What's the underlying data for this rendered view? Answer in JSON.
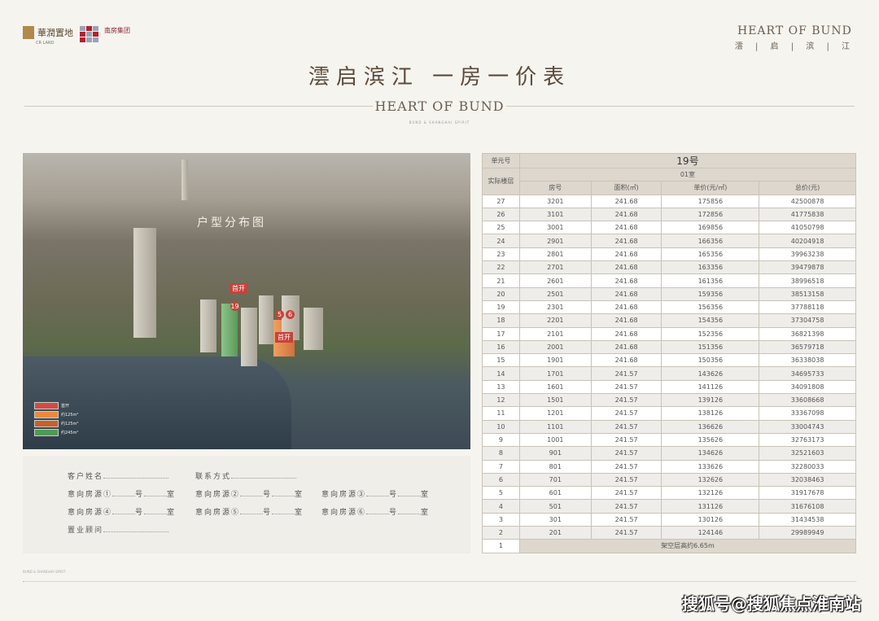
{
  "header": {
    "logo1_cn": "華潤置地",
    "logo1_en": "CR LAND",
    "logo2_cn": "南房集团",
    "logo2_en": "SHANGHAI NANFANG GROUP",
    "brand_en": "HEART OF BUND",
    "brand_cn": "澐 | 启 | 滨 | 江"
  },
  "title": "澐启滨江  一房一价表",
  "center_brand": "HEART OF BUND",
  "center_sub": "BUND & SHANGHAI SPIRIT",
  "photo": {
    "plan_label": "户型分布图",
    "tags": [
      "首开",
      "首开"
    ],
    "numbers": [
      "19",
      "5",
      "6"
    ],
    "legend": [
      {
        "label": "首开",
        "color": "#d24a44"
      },
      {
        "label": "约125m²",
        "color": "#e98a3c"
      },
      {
        "label": "约125m²",
        "color": "#c8602a"
      },
      {
        "label": "约245m²",
        "color": "#4f9a55"
      }
    ]
  },
  "form": {
    "name": "客户姓名",
    "contact": "联系方式",
    "sources": [
      "意向房源①",
      "意向房源②",
      "意向房源③",
      "意向房源④",
      "意向房源⑤",
      "意向房源⑥"
    ],
    "hao": "号",
    "shi": "室",
    "advisor": "置业顾问"
  },
  "table": {
    "unit_label": "单元号",
    "unit": "19号",
    "floor_label": "实际楼层",
    "room_type": "01室",
    "columns": [
      "房号",
      "面积(㎡)",
      "单价(元/㎡)",
      "总价(元)"
    ],
    "rows": [
      [
        "27",
        "3201",
        "241.68",
        "175856",
        "42500878"
      ],
      [
        "26",
        "3101",
        "241.68",
        "172856",
        "41775838"
      ],
      [
        "25",
        "3001",
        "241.68",
        "169856",
        "41050798"
      ],
      [
        "24",
        "2901",
        "241.68",
        "166356",
        "40204918"
      ],
      [
        "23",
        "2801",
        "241.68",
        "165356",
        "39963238"
      ],
      [
        "22",
        "2701",
        "241.68",
        "163356",
        "39479878"
      ],
      [
        "21",
        "2601",
        "241.68",
        "161356",
        "38996518"
      ],
      [
        "20",
        "2501",
        "241.68",
        "159356",
        "38513158"
      ],
      [
        "19",
        "2301",
        "241.68",
        "156356",
        "37788118"
      ],
      [
        "18",
        "2201",
        "241.68",
        "154356",
        "37304758"
      ],
      [
        "17",
        "2101",
        "241.68",
        "152356",
        "36821398"
      ],
      [
        "16",
        "2001",
        "241.68",
        "151356",
        "36579718"
      ],
      [
        "15",
        "1901",
        "241.68",
        "150356",
        "36338038"
      ],
      [
        "14",
        "1701",
        "241.57",
        "143626",
        "34695733"
      ],
      [
        "13",
        "1601",
        "241.57",
        "141126",
        "34091808"
      ],
      [
        "12",
        "1501",
        "241.57",
        "139126",
        "33608668"
      ],
      [
        "11",
        "1201",
        "241.57",
        "138126",
        "33367098"
      ],
      [
        "10",
        "1101",
        "241.57",
        "136626",
        "33004743"
      ],
      [
        "9",
        "1001",
        "241.57",
        "135626",
        "32763173"
      ],
      [
        "8",
        "901",
        "241.57",
        "134626",
        "32521603"
      ],
      [
        "7",
        "801",
        "241.57",
        "133626",
        "32280033"
      ],
      [
        "6",
        "701",
        "241.57",
        "132626",
        "32038463"
      ],
      [
        "5",
        "601",
        "241.57",
        "132126",
        "31917678"
      ],
      [
        "4",
        "501",
        "241.57",
        "131126",
        "31676108"
      ],
      [
        "3",
        "301",
        "241.57",
        "130126",
        "31434538"
      ],
      [
        "2",
        "201",
        "241.57",
        "124146",
        "29989949"
      ]
    ],
    "last_floor": "1",
    "last_note": "架空层高约6.65m"
  },
  "footer": {
    "brand": "BUND & SHANGHAI SPIRIT",
    "watermark": "搜狐号@搜狐焦点淮南站"
  }
}
